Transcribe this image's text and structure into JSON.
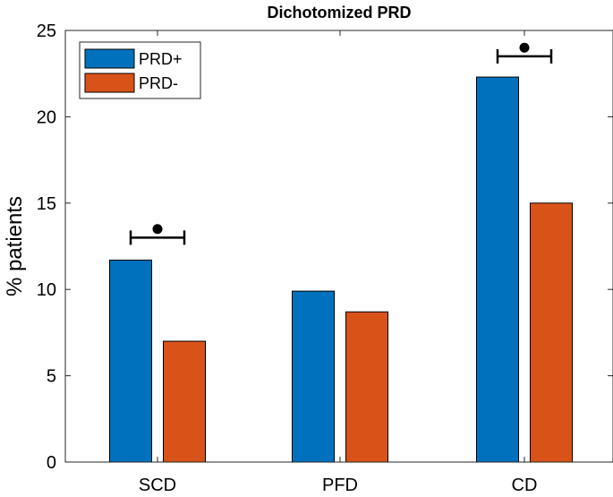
{
  "chart_data": {
    "type": "bar",
    "title": "Dichotomized PRD",
    "xlabel": "",
    "ylabel": "% patients",
    "ylim": [
      0,
      25
    ],
    "yticks": [
      0,
      5,
      10,
      15,
      20,
      25
    ],
    "categories": [
      "SCD",
      "PFD",
      "CD"
    ],
    "series": [
      {
        "name": "PRD+",
        "values": [
          11.7,
          9.9,
          22.3
        ],
        "color": "#0072BD"
      },
      {
        "name": "PRD-",
        "values": [
          7.0,
          8.7,
          15.0
        ],
        "color": "#D95319"
      }
    ],
    "significance": [
      {
        "category": "SCD",
        "marker_value": 13.5,
        "bracket_value": 13.0
      },
      {
        "category": "CD",
        "marker_value": 24.0,
        "bracket_value": 23.5
      }
    ],
    "legend_position": "top-left",
    "grid": false
  }
}
